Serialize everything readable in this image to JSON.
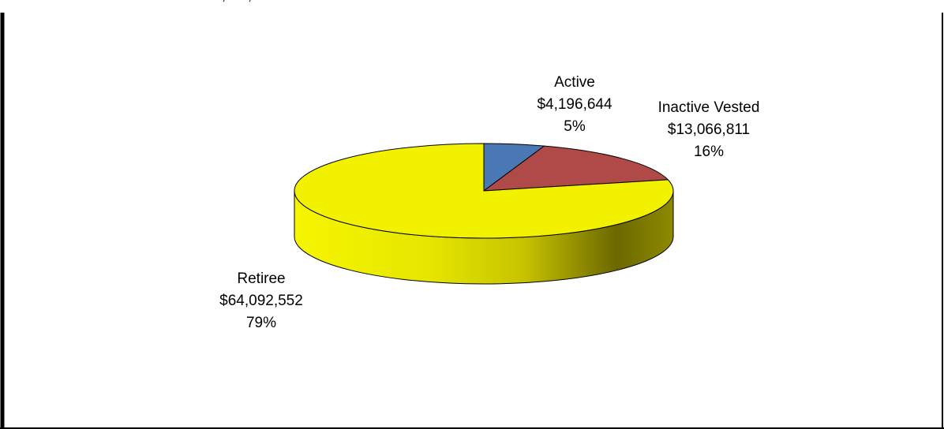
{
  "top_clipped_text": "… , … , …",
  "colors": {
    "active": "#4a78b4",
    "inactive_vested": "#b04a48",
    "retiree": "#f2f200",
    "border": "#000000"
  },
  "chart_data": {
    "type": "pie",
    "three_d": true,
    "slices": [
      {
        "label": "Active",
        "value": 4196644,
        "value_text": "$4,196,644",
        "percent_text": "5%"
      },
      {
        "label": "Inactive Vested",
        "value": 13066811,
        "value_text": "$13,066,811",
        "percent_text": "16%"
      },
      {
        "label": "Retiree",
        "value": 64092552,
        "value_text": "$64,092,552",
        "percent_text": "79%"
      }
    ]
  }
}
